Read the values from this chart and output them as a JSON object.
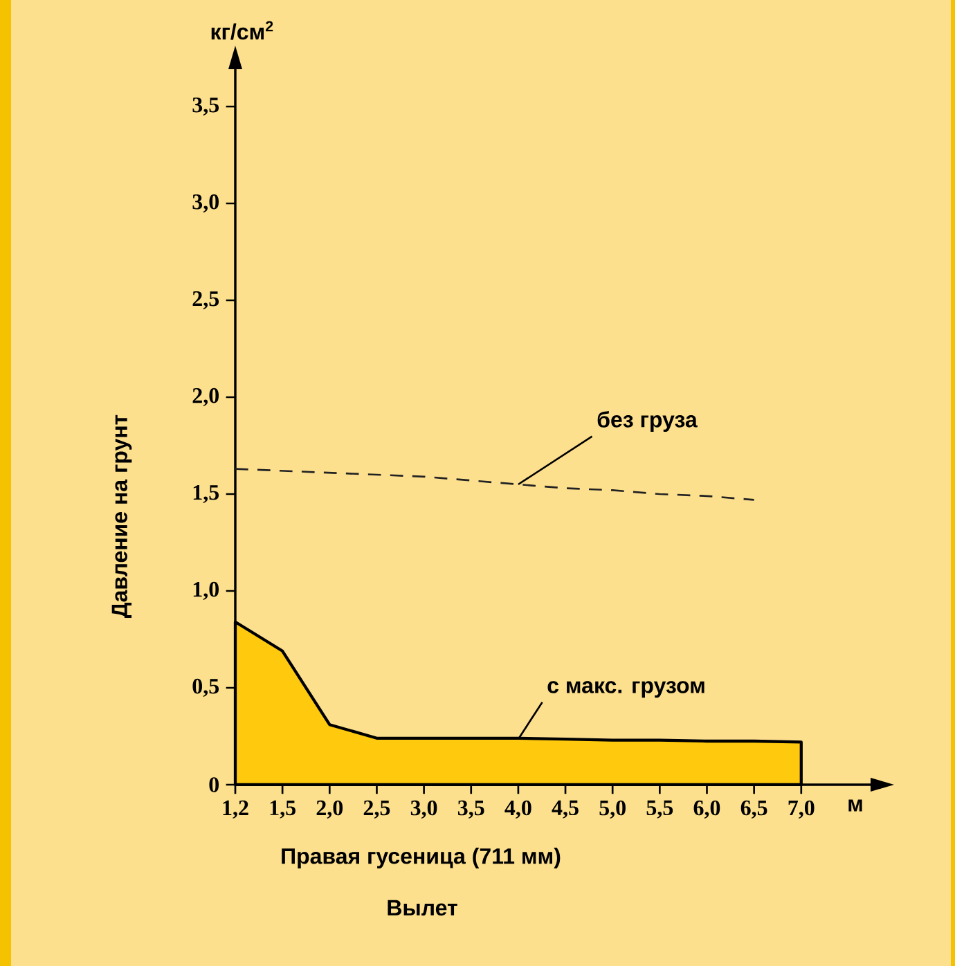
{
  "chart_data": {
    "type": "area",
    "xlabel": "Правая гусеница (711 мм)",
    "ylabel": "Давление на грунт",
    "categories": [
      "1,2",
      "1,5",
      "2,0",
      "2,5",
      "3,0",
      "3,5",
      "4,0",
      "4,5",
      "5,0",
      "5,5",
      "6,0",
      "6,5",
      "7,0"
    ],
    "series": [
      {
        "color": "#ffc90d",
        "values": [
          0.84,
          0.69,
          0.31,
          0.24,
          0.24,
          0.24,
          0.24,
          0.235,
          0.23,
          0.23,
          0.225,
          0.225,
          0.22
        ]
      },
      {
        "type": "line",
        "line_style": "dashed",
        "color": "#222222",
        "values": [
          1.63,
          1.62,
          1.61,
          1.6,
          1.59,
          1.57,
          1.55,
          1.53,
          1.52,
          1.5,
          1.49,
          1.47,
          null
        ]
      }
    ],
    "ylim": [
      0,
      3.7
    ],
    "yticks": [
      0,
      {
        "value": 0.5,
        "label": "0,5"
      },
      {
        "value": 1.0,
        "label": "1,0"
      },
      {
        "value": 1.5,
        "label": "1,5"
      },
      {
        "value": 2.0,
        "label": "2,0"
      },
      {
        "value": 2.5,
        "label": "2,5"
      },
      {
        "value": 3.0,
        "label": "3,0"
      },
      {
        "value": 3.5,
        "label": "3,5"
      }
    ],
    "annotations": [
      {
        "text": "без груза",
        "x": "4,0",
        "y": 1.55
      },
      {
        "text": "с макс. грузом",
        "x": "4,0",
        "y": 0.235
      },
      "кг/см$^{2}$",
      "м",
      "Вылет"
    ]
  }
}
